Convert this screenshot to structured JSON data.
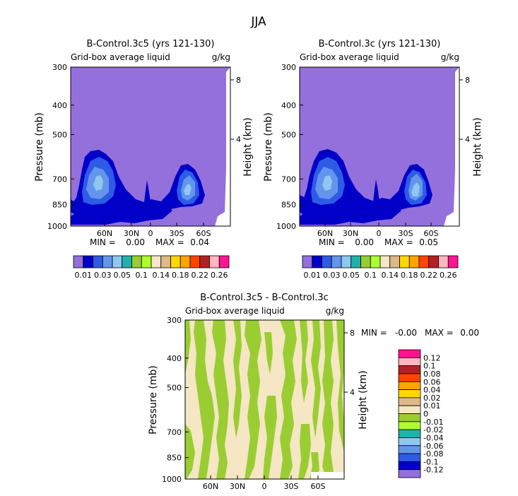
{
  "figure_title": "JJA",
  "colors": {
    "levels": [
      "#9370DB",
      "#0000C8",
      "#2E5BE6",
      "#6495ED",
      "#8EC8F0",
      "#20B2AA",
      "#9ACD32",
      "#ADFF2F",
      "#F5E6C4",
      "#DEB887",
      "#FFD700",
      "#FFA500",
      "#FF4500",
      "#B22222",
      "#FFB6C1",
      "#FF1493"
    ],
    "diff_levels": [
      "#9370DB",
      "#0000C8",
      "#2E5BE6",
      "#6495ED",
      "#8EC8F0",
      "#20B2AA",
      "#ADFF2F",
      "#9ACD32",
      "#F5E6C4",
      "#DEB887",
      "#FFD700",
      "#FFA500",
      "#FF4500",
      "#B22222",
      "#FFB6C1",
      "#FF1493"
    ]
  },
  "chart_data": [
    {
      "type": "contour",
      "title": "B-Control.3c5 (yrs 121-130)",
      "subtitle": "Grid-box average liquid",
      "units": "g/kg",
      "ylabel": "Pressure (mb)",
      "y2label": "Height (km)",
      "yticks": [
        "300",
        "400",
        "500",
        "700",
        "850",
        "1000"
      ],
      "y2ticks": [
        "8",
        "4"
      ],
      "xticks": [
        "60N",
        "30N",
        "0",
        "30S",
        "60S"
      ],
      "min_label": "MIN =",
      "min_value": "0.00",
      "max_label": "MAX =",
      "max_value": "0.04",
      "colorbar_labels": [
        "0.01",
        "0.03",
        "0.05",
        "0.1",
        "0.14",
        "0.18",
        "0.22",
        "0.26"
      ]
    },
    {
      "type": "contour",
      "title": "B-Control.3c (yrs 121-130)",
      "subtitle": "Grid-box average liquid",
      "units": "g/kg",
      "ylabel": "Pressure (mb)",
      "y2label": "Height (km)",
      "yticks": [
        "300",
        "400",
        "500",
        "700",
        "850",
        "1000"
      ],
      "y2ticks": [
        "8",
        "4"
      ],
      "xticks": [
        "60N",
        "30N",
        "0",
        "30S",
        "60S"
      ],
      "min_label": "MIN =",
      "min_value": "0.00",
      "max_label": "MAX =",
      "max_value": "0.05",
      "colorbar_labels": [
        "0.01",
        "0.03",
        "0.05",
        "0.1",
        "0.14",
        "0.18",
        "0.22",
        "0.26"
      ]
    },
    {
      "type": "contour",
      "title": "B-Control.3c5 - B-Control.3c",
      "subtitle": "Grid-box average liquid",
      "units": "g/kg",
      "ylabel": "Pressure (mb)",
      "y2label": "Height (km)",
      "yticks": [
        "300",
        "400",
        "500",
        "700",
        "850",
        "1000"
      ],
      "y2ticks": [
        "8",
        "4"
      ],
      "xticks": [
        "60N",
        "30N",
        "0",
        "30S",
        "60S"
      ],
      "min_label": "MIN =",
      "min_value": "-0.00",
      "max_label": "MAX =",
      "max_value": "0.00",
      "colorbar_labels": [
        "0.12",
        "0.1",
        "0.08",
        "0.06",
        "0.04",
        "0.02",
        "0.01",
        "0",
        "-0.01",
        "-0.02",
        "-0.04",
        "-0.06",
        "-0.08",
        "-0.1",
        "-0.12"
      ]
    }
  ]
}
